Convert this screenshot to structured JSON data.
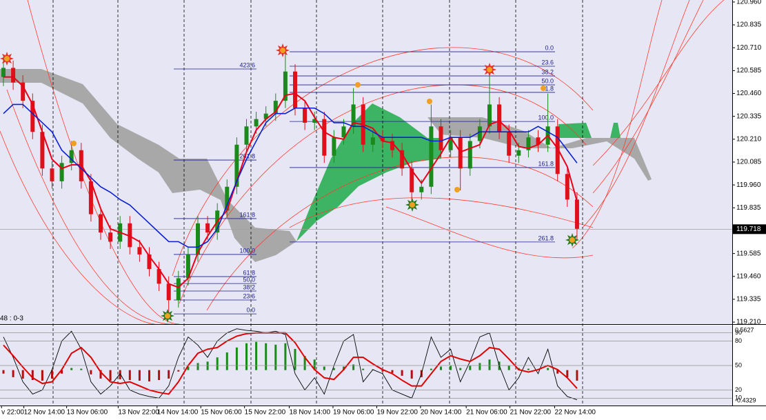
{
  "chart_data": [
    {
      "type": "candlestick",
      "info_text": "48 : 0-3",
      "up_color": "#1a8a1a",
      "down_color": "#e0101a",
      "ylim": [
        119.199,
        120.971
      ],
      "yticks": [
        {
          "value": 120.96,
          "label": "120.960"
        },
        {
          "value": 120.835,
          "label": "120.835"
        },
        {
          "value": 120.71,
          "label": "120.710"
        },
        {
          "value": 120.585,
          "label": "120.585"
        },
        {
          "value": 120.46,
          "label": "120.460"
        },
        {
          "value": 120.335,
          "label": "120.335"
        },
        {
          "value": 120.21,
          "label": "120.210"
        },
        {
          "value": 120.085,
          "label": "120.085"
        },
        {
          "value": 119.96,
          "label": "119.960"
        },
        {
          "value": 119.835,
          "label": "119.835"
        },
        {
          "value": 119.71,
          "label": "119.710"
        },
        {
          "value": 119.585,
          "label": "119.585"
        },
        {
          "value": 119.46,
          "label": "119.460"
        },
        {
          "value": 119.335,
          "label": "119.335"
        },
        {
          "value": 119.21,
          "label": "119.210"
        }
      ],
      "xticks": [
        {
          "value": -0.2,
          "label": "v 22:00"
        },
        {
          "value": 2.1,
          "label": "12 Nov 14:00"
        },
        {
          "value": 6.5,
          "label": "13 Nov 06:00"
        },
        {
          "value": 11.8,
          "label": "13 Nov 22:00"
        },
        {
          "value": 15.8,
          "label": "14 Nov 14:00"
        },
        {
          "value": 20.3,
          "label": "15 Nov 06:00"
        },
        {
          "value": 24.8,
          "label": "15 Nov 22:00"
        },
        {
          "value": 29.4,
          "label": "18 Nov 14:00"
        },
        {
          "value": 33.9,
          "label": "19 Nov 06:00"
        },
        {
          "value": 38.4,
          "label": "19 Nov 22:00"
        },
        {
          "value": 42.9,
          "label": "20 Nov 14:00"
        },
        {
          "value": 47.6,
          "label": "21 Nov 06:00"
        },
        {
          "value": 52.1,
          "label": "21 Nov 22:00"
        },
        {
          "value": 56.7,
          "label": "22 Nov 14:00"
        }
      ],
      "last_price": 119.718,
      "open": [
        120.55,
        120.6,
        120.52,
        120.42,
        120.25,
        120.05,
        119.98,
        120.08,
        120.15,
        119.98,
        119.8,
        119.7,
        119.65,
        119.75,
        119.62,
        119.58,
        119.5,
        119.42,
        119.33,
        119.45,
        119.58,
        119.75,
        119.7,
        119.82,
        119.95,
        120.18,
        120.28,
        120.32,
        120.35,
        120.42,
        120.58,
        120.38,
        120.3,
        120.32,
        120.12,
        120.22,
        120.28,
        120.4,
        120.18,
        120.22,
        120.2,
        120.15,
        120.05,
        119.92,
        119.95,
        120.28,
        120.15,
        120.22,
        120.05,
        120.2,
        120.28,
        120.4,
        120.25,
        120.12,
        120.15,
        120.22,
        120.18,
        120.28,
        120.02,
        119.88
      ],
      "high": [
        120.66,
        120.64,
        120.56,
        120.46,
        120.29,
        120.09,
        120.12,
        120.2,
        120.19,
        120.02,
        119.84,
        119.74,
        119.79,
        119.79,
        119.66,
        119.62,
        119.54,
        119.46,
        119.49,
        119.62,
        119.79,
        119.79,
        119.86,
        119.99,
        120.22,
        120.32,
        120.36,
        120.39,
        120.46,
        120.7,
        120.62,
        120.42,
        120.36,
        120.36,
        120.26,
        120.32,
        120.49,
        120.44,
        120.26,
        120.26,
        120.24,
        120.19,
        120.09,
        119.99,
        120.4,
        120.32,
        120.26,
        120.26,
        120.24,
        120.32,
        120.58,
        120.44,
        120.29,
        120.19,
        120.26,
        120.26,
        120.46,
        120.32,
        120.06,
        119.92
      ],
      "low": [
        120.5,
        120.48,
        120.38,
        120.21,
        120.01,
        119.94,
        119.94,
        120.04,
        119.94,
        119.76,
        119.66,
        119.61,
        119.61,
        119.58,
        119.54,
        119.46,
        119.38,
        119.24,
        119.29,
        119.41,
        119.54,
        119.66,
        119.66,
        119.78,
        119.91,
        120.14,
        120.24,
        120.28,
        120.31,
        120.38,
        120.34,
        120.26,
        120.26,
        120.08,
        120.08,
        120.18,
        120.24,
        120.14,
        120.14,
        120.16,
        120.11,
        120.01,
        119.84,
        119.88,
        119.91,
        120.11,
        120.11,
        119.93,
        120.01,
        120.16,
        120.24,
        120.21,
        120.08,
        120.08,
        120.11,
        120.14,
        120.14,
        119.98,
        119.84,
        119.66
      ],
      "close": [
        120.6,
        120.52,
        120.42,
        120.25,
        120.05,
        119.98,
        120.08,
        120.15,
        119.98,
        119.8,
        119.7,
        119.65,
        119.75,
        119.62,
        119.58,
        119.5,
        119.42,
        119.33,
        119.45,
        119.58,
        119.75,
        119.7,
        119.82,
        119.95,
        120.18,
        120.28,
        120.32,
        120.35,
        120.42,
        120.58,
        120.38,
        120.3,
        120.32,
        120.12,
        120.22,
        120.28,
        120.4,
        120.18,
        120.22,
        120.2,
        120.15,
        120.05,
        119.92,
        119.95,
        120.28,
        120.15,
        120.22,
        120.05,
        120.2,
        120.28,
        120.4,
        120.25,
        120.12,
        120.15,
        120.22,
        120.18,
        120.28,
        120.02,
        119.88,
        119.72
      ],
      "ma_fast": {
        "color": "#e8001a",
        "values": [
          120.55,
          120.55,
          120.5,
          120.4,
          120.25,
          120.1,
          120.05,
          120.07,
          120.07,
          119.98,
          119.83,
          119.72,
          119.7,
          119.68,
          119.65,
          119.57,
          119.5,
          119.42,
          119.4,
          119.45,
          119.59,
          119.68,
          119.76,
          119.82,
          119.98,
          120.14,
          120.26,
          120.32,
          120.36,
          120.45,
          120.46,
          120.42,
          120.33,
          120.25,
          120.22,
          120.21,
          120.3,
          120.29,
          120.27,
          120.2,
          120.19,
          120.13,
          120.04,
          119.97,
          120.05,
          120.13,
          120.22,
          120.14,
          120.16,
          120.18,
          120.29,
          120.31,
          120.26,
          120.17,
          120.16,
          120.18,
          120.23,
          120.16,
          120.06,
          119.87
        ]
      },
      "ma_slow": {
        "color": "#0a20d0",
        "values": [
          120.35,
          120.4,
          120.4,
          120.35,
          120.3,
          120.25,
          120.15,
          120.1,
          120.05,
          120.0,
          119.95,
          119.92,
          119.88,
          119.85,
          119.8,
          119.75,
          119.7,
          119.65,
          119.65,
          119.62,
          119.62,
          119.65,
          119.72,
          119.85,
          119.98,
          120.1,
          120.2,
          120.3,
          120.35,
          120.35,
          120.38,
          120.38,
          120.38,
          120.35,
          120.3,
          120.3,
          120.28,
          120.28,
          120.25,
          120.22,
          120.22,
          120.22,
          120.22,
          120.22,
          120.2,
          120.2,
          120.22,
          120.22,
          120.22,
          120.25,
          120.25,
          120.25,
          120.25,
          120.25,
          120.25,
          120.28,
          120.25,
          120.22,
          120.15,
          120.08
        ]
      },
      "fib_levels": [
        {
          "color": "#1c1c8c",
          "levels": [
            {
              "label": "0.0",
              "price": 119.255
            },
            {
              "label": "23.6",
              "price": 119.331
            },
            {
              "label": "38.2",
              "price": 119.38
            },
            {
              "label": "50.0",
              "price": 119.421
            },
            {
              "label": "61.8",
              "price": 119.459
            },
            {
              "label": "100.0",
              "price": 119.58
            },
            {
              "label": "161.8",
              "price": 119.776
            },
            {
              "label": "261.8",
              "price": 120.096
            },
            {
              "label": "423.6",
              "price": 120.594
            }
          ]
        },
        {
          "color": "#1c1c8c",
          "levels": [
            {
              "label": "0.0",
              "price": 120.688
            },
            {
              "label": "23.6",
              "price": 120.609
            },
            {
              "label": "38.2",
              "price": 120.556
            },
            {
              "label": "50.0",
              "price": 120.507
            },
            {
              "label": "61.8",
              "price": 120.466
            },
            {
              "label": "100.0",
              "price": 120.307
            },
            {
              "label": "161.8",
              "price": 120.055
            },
            {
              "label": "261.8",
              "price": 119.648
            }
          ]
        }
      ]
    },
    {
      "type": "oscillator",
      "ylim": [
        1,
        99
      ],
      "yticks": [
        90,
        80,
        50,
        20,
        10
      ],
      "hist_lim": [
        -0.4329,
        0.5627
      ],
      "hist_ticks": [
        0.5627,
        -0.4329
      ],
      "up_color": "#1a8a1a",
      "down_color": "#b01010",
      "histogram": [
        -0.05,
        -0.1,
        -0.12,
        -0.14,
        -0.15,
        -0.12,
        -0.05,
        0.03,
        0.02,
        -0.06,
        -0.12,
        -0.15,
        -0.13,
        -0.14,
        -0.15,
        -0.16,
        -0.14,
        -0.12,
        -0.02,
        0.05,
        0.1,
        0.12,
        0.18,
        0.25,
        0.32,
        0.38,
        0.4,
        0.38,
        0.36,
        0.38,
        0.3,
        0.2,
        0.15,
        0.05,
        0.03,
        0.05,
        0.08,
        0.02,
        0.01,
        -0.02,
        -0.04,
        -0.08,
        -0.12,
        -0.1,
        0.02,
        0.05,
        0.06,
        0.03,
        0.06,
        0.1,
        0.15,
        0.12,
        0.06,
        0.03,
        0.02,
        0.01,
        0.03,
        -0.05,
        -0.1,
        -0.15
      ],
      "stochastic": {
        "color": "#000000",
        "values": [
          85,
          60,
          30,
          15,
          20,
          45,
          80,
          92,
          70,
          30,
          15,
          25,
          40,
          20,
          15,
          12,
          10,
          25,
          60,
          85,
          75,
          60,
          80,
          90,
          95,
          93,
          92,
          90,
          92,
          88,
          40,
          20,
          35,
          15,
          50,
          80,
          88,
          30,
          45,
          40,
          20,
          15,
          10,
          40,
          85,
          60,
          70,
          30,
          55,
          85,
          90,
          50,
          20,
          35,
          60,
          40,
          70,
          25,
          12,
          8
        ]
      },
      "signal": {
        "color": "#e00000",
        "values": [
          75,
          62,
          48,
          35,
          28,
          30,
          45,
          65,
          72,
          60,
          42,
          30,
          28,
          30,
          25,
          20,
          17,
          15,
          30,
          50,
          65,
          70,
          72,
          80,
          86,
          89,
          90,
          90,
          90,
          90,
          78,
          60,
          45,
          35,
          33,
          45,
          60,
          60,
          52,
          45,
          40,
          32,
          25,
          25,
          40,
          55,
          62,
          58,
          55,
          62,
          72,
          70,
          58,
          45,
          42,
          45,
          50,
          45,
          35,
          22
        ]
      }
    }
  ]
}
